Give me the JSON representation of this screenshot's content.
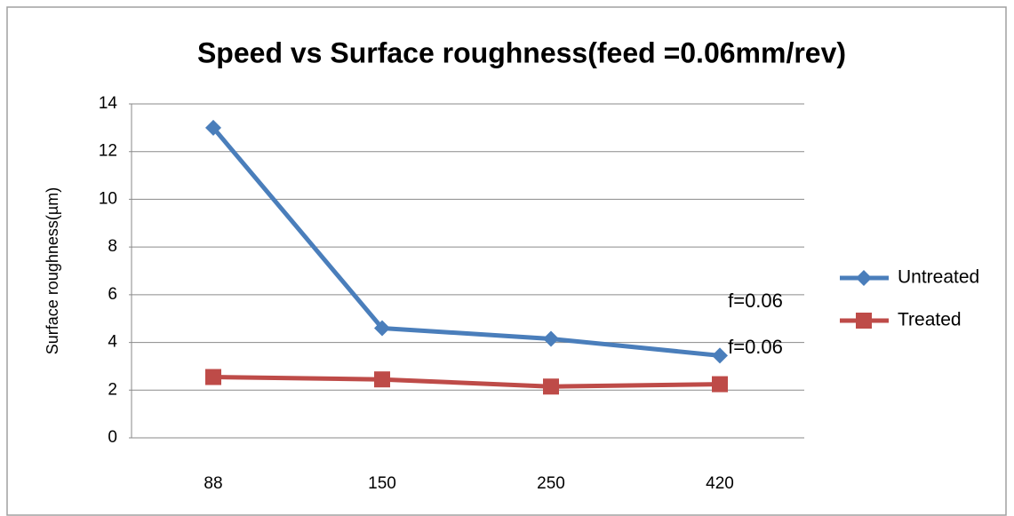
{
  "chart_data": {
    "type": "line",
    "title": "Speed vs Surface roughness(feed =0.06mm/rev)",
    "y_label": "Surface roughness(µm)",
    "categories": [
      "88",
      "150",
      "250",
      "420"
    ],
    "series": [
      {
        "name": "Untreated",
        "color": "#4a7ebb",
        "marker": "diamond",
        "values": [
          13,
          4.6,
          4.15,
          3.45
        ]
      },
      {
        "name": "Treated",
        "color": "#be4b48",
        "marker": "square",
        "values": [
          2.55,
          2.45,
          2.15,
          2.25
        ]
      }
    ],
    "annotations": [
      "f=0.06",
      "f=0.06"
    ],
    "ylim": [
      0,
      14
    ],
    "yticks": [
      0,
      2,
      4,
      6,
      8,
      10,
      12,
      14
    ],
    "grid": true,
    "legend": "right"
  }
}
